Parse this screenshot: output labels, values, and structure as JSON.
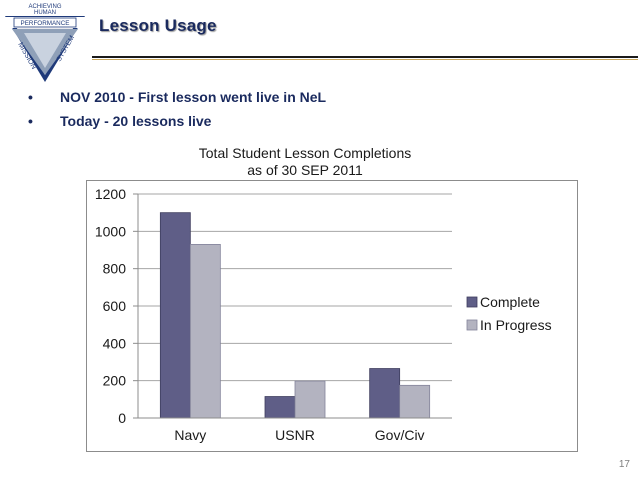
{
  "logo": {
    "line1": "ACHIEVING",
    "line2": "HUMAN",
    "line3": "PERFORMANCE",
    "left_edge": "MISSION",
    "right_edge": "SYSTEM"
  },
  "slide": {
    "title": "Lesson Usage",
    "bullets": [
      {
        "marker": "•",
        "text": "NOV 2010 - First lesson went live in NeL"
      },
      {
        "marker": "•",
        "text": "Today - 20 lessons live"
      }
    ],
    "page_number": "17"
  },
  "colors": {
    "title": "#1a2a5e",
    "complete": "#5f5e87",
    "in_progress": "#b3b3c0",
    "grid": "#a6a6a6"
  },
  "chart_data": {
    "type": "bar",
    "title": "Total Student Lesson Completions",
    "subtitle": "as of 30 SEP 2011",
    "categories": [
      "Navy",
      "USNR",
      "Gov/Civ"
    ],
    "series": [
      {
        "name": "Complete",
        "values": [
          1100,
          115,
          265
        ]
      },
      {
        "name": "In Progress",
        "values": [
          930,
          198,
          175
        ]
      }
    ],
    "ylim": [
      0,
      1200
    ],
    "yticks": [
      "0",
      "200",
      "400",
      "600",
      "800",
      "1000",
      "1200"
    ],
    "xlabel": "",
    "ylabel": "",
    "grid": true,
    "legend": "right"
  }
}
